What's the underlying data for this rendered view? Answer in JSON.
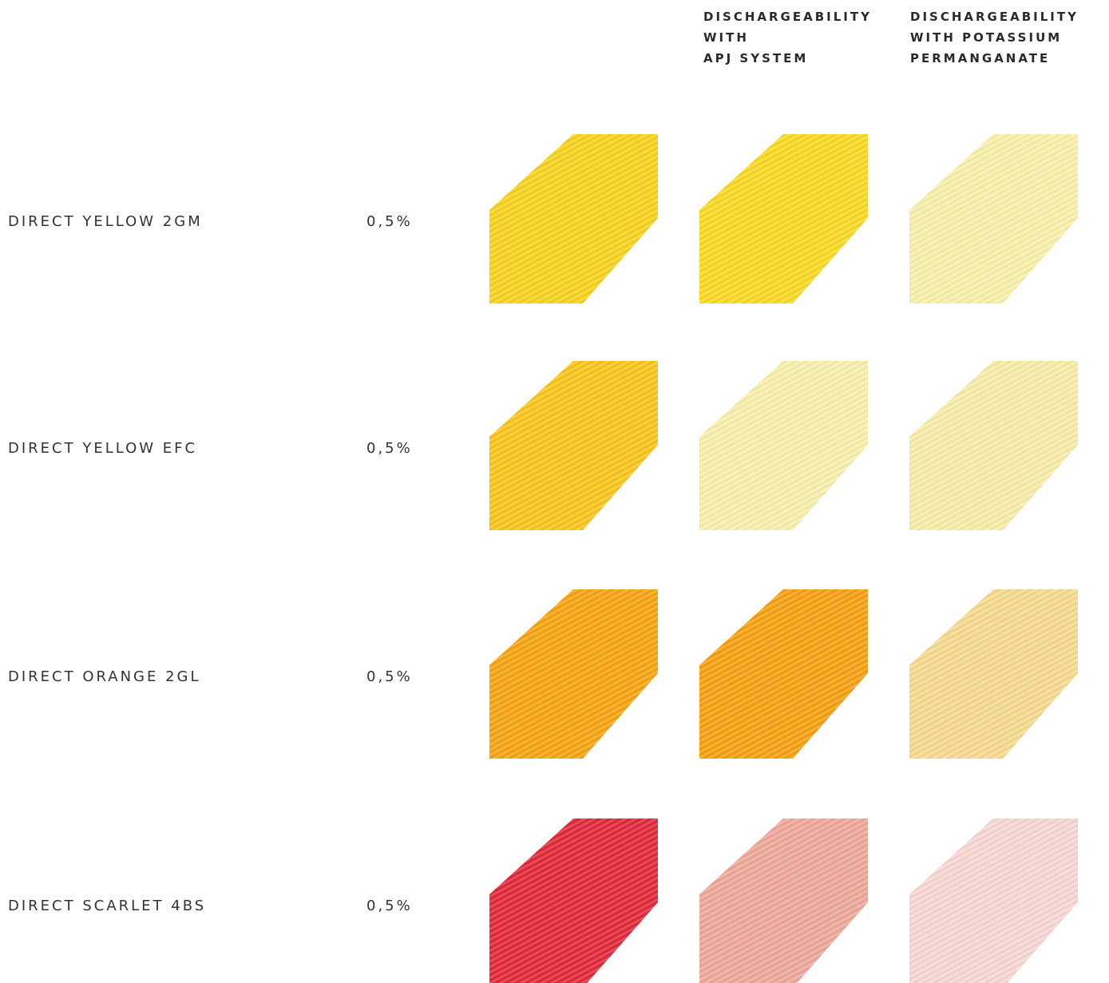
{
  "table": {
    "headers": [
      null,
      {
        "lines": [
          "DISCHARGEABILITY",
          "WITH",
          "APJ SYSTEM"
        ]
      },
      {
        "lines": [
          "DISCHARGEABILITY",
          "WITH POTASSIUM",
          "PERMANGANATE"
        ]
      }
    ],
    "rows": [
      {
        "name": "DIRECT YELLOW 2GM",
        "concentration": "0,5%",
        "swatches": [
          "#f6d21e",
          "#f8d923",
          "#f7efaa"
        ]
      },
      {
        "name": "DIRECT YELLOW EFC",
        "concentration": "0,5%",
        "swatches": [
          "#f8c51c",
          "#f6eeab",
          "#f6eba8"
        ]
      },
      {
        "name": "DIRECT ORANGE 2GL",
        "concentration": "0,5%",
        "swatches": [
          "#f5a412",
          "#f5a012",
          "#f5d98e"
        ]
      },
      {
        "name": "DIRECT SCARLET 4BS",
        "concentration": "0,5%",
        "swatches": [
          "#e02a3a",
          "#eda79a",
          "#f6d6d2"
        ]
      }
    ]
  }
}
